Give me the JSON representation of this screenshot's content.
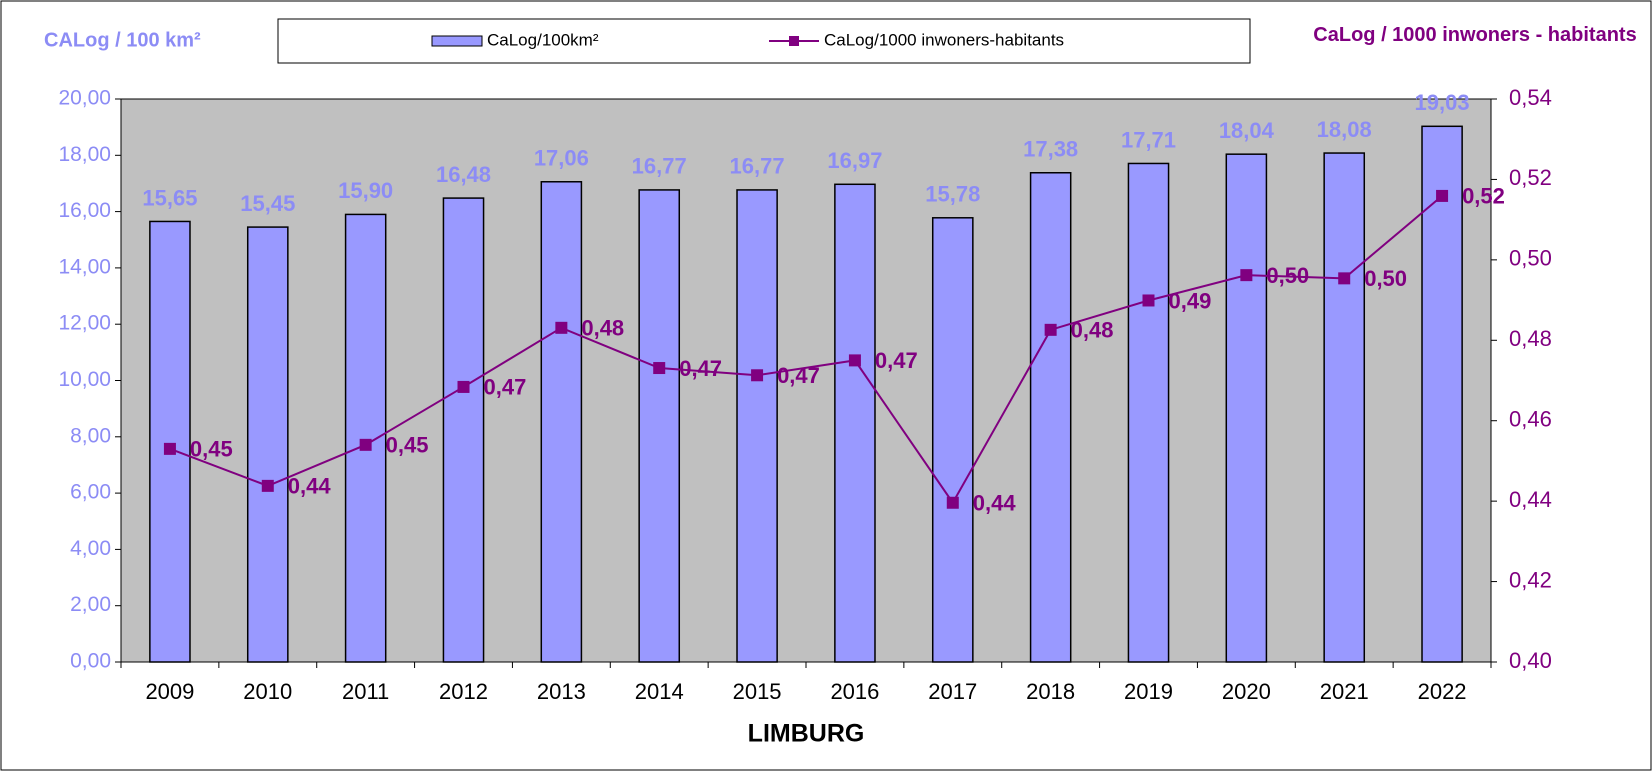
{
  "chart_data": {
    "type": "bar_line",
    "title": "LIMBURG",
    "y_label": "CALog / 100 km²",
    "y2_label": "CaLog / 1000 inwoners - habitants",
    "categories": [
      "2009",
      "2010",
      "2011",
      "2012",
      "2013",
      "2014",
      "2015",
      "2016",
      "2017",
      "2018",
      "2019",
      "2020",
      "2021",
      "2022"
    ],
    "series": [
      {
        "name": "CaLog/100km²",
        "type": "bar",
        "color": "#9999ff",
        "label_color": "#8c8cf5",
        "values": [
          15.65,
          15.45,
          15.9,
          16.48,
          17.06,
          16.77,
          16.77,
          16.97,
          15.78,
          17.38,
          17.71,
          18.04,
          18.08,
          19.03
        ],
        "value_labels": [
          "15,65",
          "15,45",
          "15,90",
          "16,48",
          "17,06",
          "16,77",
          "16,77",
          "16,97",
          "15,78",
          "17,38",
          "17,71",
          "18,04",
          "18,08",
          "19,03"
        ]
      },
      {
        "name": "CaLog/1000 inwoners-habitants",
        "type": "line",
        "axis": "y2",
        "color": "#800080",
        "values": [
          0.453,
          0.4438,
          0.454,
          0.4684,
          0.4831,
          0.4731,
          0.4713,
          0.475,
          0.4396,
          0.4826,
          0.4899,
          0.4962,
          0.4954,
          0.5159
        ],
        "value_labels": [
          "0,45",
          "0,44",
          "0,45",
          "0,47",
          "0,48",
          "0,47",
          "0,47",
          "0,47",
          "0,44",
          "0,48",
          "0,49",
          "0,50",
          "0,50",
          "0,52"
        ]
      }
    ],
    "ylim": [
      0,
      20
    ],
    "yticks": [
      {
        "value": 0,
        "label": "0,00"
      },
      {
        "value": 2,
        "label": "2,00"
      },
      {
        "value": 4,
        "label": "4,00"
      },
      {
        "value": 6,
        "label": "6,00"
      },
      {
        "value": 8,
        "label": "8,00"
      },
      {
        "value": 10,
        "label": "10,00"
      },
      {
        "value": 12,
        "label": "12,00"
      },
      {
        "value": 14,
        "label": "14,00"
      },
      {
        "value": 16,
        "label": "16,00"
      },
      {
        "value": 18,
        "label": "18,00"
      },
      {
        "value": 20,
        "label": "20,00"
      }
    ],
    "y2lim": [
      0.4,
      0.54
    ],
    "y2ticks": [
      {
        "value": 0.4,
        "label": "0,40"
      },
      {
        "value": 0.42,
        "label": "0,42"
      },
      {
        "value": 0.44,
        "label": "0,44"
      },
      {
        "value": 0.46,
        "label": "0,46"
      },
      {
        "value": 0.48,
        "label": "0,48"
      },
      {
        "value": 0.5,
        "label": "0,50"
      },
      {
        "value": 0.52,
        "label": "0,52"
      },
      {
        "value": 0.54,
        "label": "0,54"
      }
    ],
    "grid": false,
    "plot_background": "#c0c0c0"
  }
}
